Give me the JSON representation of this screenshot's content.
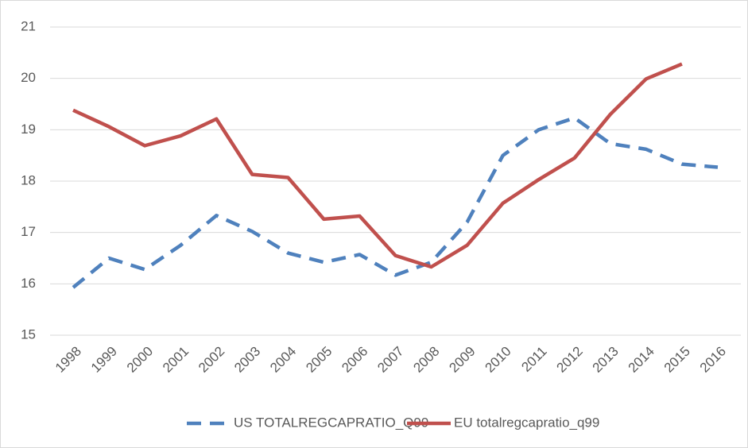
{
  "chart_data": {
    "type": "line",
    "categories": [
      "1998",
      "1999",
      "2000",
      "2001",
      "2002",
      "2003",
      "2004",
      "2005",
      "2006",
      "2007",
      "2008",
      "2009",
      "2010",
      "2011",
      "2012",
      "2013",
      "2014",
      "2015",
      "2016"
    ],
    "series": [
      {
        "name": "US TOTALREGCAPRATIO_Q99",
        "color": "#4f81bd",
        "dash": true,
        "values": [
          15.93,
          16.5,
          16.28,
          16.75,
          17.33,
          17.02,
          16.6,
          16.42,
          16.57,
          16.17,
          16.42,
          17.2,
          18.5,
          19.0,
          19.23,
          18.73,
          18.62,
          18.33,
          18.27
        ]
      },
      {
        "name": "EU totalregcapratio_q99",
        "color": "#c0504d",
        "dash": false,
        "values": [
          19.38,
          19.06,
          18.69,
          18.88,
          19.21,
          18.13,
          18.07,
          17.26,
          17.32,
          16.55,
          16.33,
          16.75,
          17.57,
          18.03,
          18.45,
          19.3,
          19.99,
          20.28,
          null
        ]
      }
    ],
    "ylim": [
      15,
      21
    ],
    "yticks": [
      15,
      16,
      17,
      18,
      19,
      20,
      21
    ],
    "grid": true,
    "legend": "bottom"
  }
}
